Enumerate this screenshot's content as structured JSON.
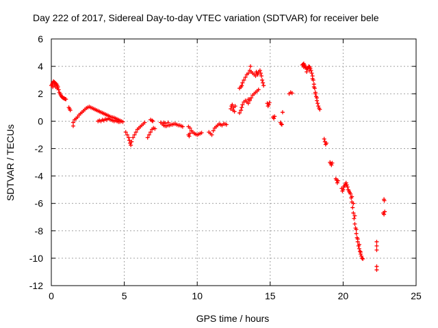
{
  "chart_data": {
    "type": "scatter",
    "title": "Day 222 of 2017, Sidereal Day-to-day VTEC variation (SDTVAR) for receiver bele",
    "xlabel": "GPS time / hours",
    "ylabel": "SDTVAR / TECUs",
    "xlim": [
      0,
      25
    ],
    "ylim": [
      -12,
      6
    ],
    "xticks": [
      0,
      5,
      10,
      15,
      20,
      25
    ],
    "yticks": [
      -12,
      -10,
      -8,
      -6,
      -4,
      -2,
      0,
      2,
      4,
      6
    ],
    "xtick_labels": [
      "0",
      "5",
      "10",
      "15",
      "20",
      "25"
    ],
    "ytick_labels": [
      "-12",
      "-10",
      "-8",
      "-6",
      "-4",
      "-2",
      "0",
      "2",
      "4",
      "6"
    ],
    "grid": true,
    "marker": "+",
    "color": "#ff0000",
    "series": [
      {
        "name": "SDTVAR",
        "points": [
          [
            0.0,
            2.6
          ],
          [
            0.05,
            2.7
          ],
          [
            0.1,
            2.8
          ],
          [
            0.15,
            2.9
          ],
          [
            0.2,
            2.85
          ],
          [
            0.25,
            2.8
          ],
          [
            0.3,
            2.75
          ],
          [
            0.35,
            2.7
          ],
          [
            0.4,
            2.6
          ],
          [
            0.45,
            2.5
          ],
          [
            0.5,
            2.3
          ],
          [
            0.55,
            2.1
          ],
          [
            0.6,
            2.0
          ],
          [
            0.65,
            1.9
          ],
          [
            0.7,
            1.8
          ],
          [
            0.75,
            1.75
          ],
          [
            0.8,
            1.7
          ],
          [
            0.85,
            1.68
          ],
          [
            0.9,
            1.65
          ],
          [
            0.95,
            1.62
          ],
          [
            1.0,
            1.6
          ],
          [
            0.1,
            2.5
          ],
          [
            0.2,
            2.6
          ],
          [
            0.3,
            2.5
          ],
          [
            0.4,
            2.4
          ],
          [
            1.2,
            1.0
          ],
          [
            1.25,
            0.9
          ],
          [
            1.3,
            0.8
          ],
          [
            1.5,
            -0.1
          ],
          [
            1.5,
            -0.35
          ],
          [
            1.6,
            0.1
          ],
          [
            1.7,
            0.2
          ],
          [
            1.8,
            0.3
          ],
          [
            1.9,
            0.45
          ],
          [
            2.0,
            0.55
          ],
          [
            2.1,
            0.65
          ],
          [
            2.2,
            0.75
          ],
          [
            2.3,
            0.85
          ],
          [
            2.4,
            0.95
          ],
          [
            2.5,
            1.0
          ],
          [
            2.6,
            1.05
          ],
          [
            2.7,
            1.0
          ],
          [
            2.8,
            0.95
          ],
          [
            2.9,
            0.9
          ],
          [
            3.0,
            0.85
          ],
          [
            3.1,
            0.8
          ],
          [
            3.2,
            0.75
          ],
          [
            3.3,
            0.7
          ],
          [
            3.4,
            0.65
          ],
          [
            3.5,
            0.6
          ],
          [
            3.6,
            0.55
          ],
          [
            3.7,
            0.5
          ],
          [
            3.8,
            0.45
          ],
          [
            3.9,
            0.4
          ],
          [
            4.0,
            0.35
          ],
          [
            4.1,
            0.3
          ],
          [
            4.2,
            0.28
          ],
          [
            4.3,
            0.25
          ],
          [
            4.4,
            0.2
          ],
          [
            4.5,
            0.15
          ],
          [
            4.6,
            0.1
          ],
          [
            4.7,
            0.05
          ],
          [
            4.8,
            0.0
          ],
          [
            4.9,
            -0.05
          ],
          [
            3.2,
            0.0
          ],
          [
            3.3,
            0.05
          ],
          [
            3.4,
            0.0
          ],
          [
            3.5,
            0.1
          ],
          [
            3.6,
            0.05
          ],
          [
            3.7,
            0.15
          ],
          [
            3.8,
            0.1
          ],
          [
            3.9,
            0.2
          ],
          [
            4.0,
            0.15
          ],
          [
            4.1,
            0.1
          ],
          [
            4.2,
            0.05
          ],
          [
            4.3,
            0.0
          ],
          [
            4.4,
            0.05
          ],
          [
            4.5,
            0.0
          ],
          [
            4.6,
            -0.05
          ],
          [
            4.7,
            -0.05
          ],
          [
            5.1,
            -0.8
          ],
          [
            5.2,
            -1.0
          ],
          [
            5.3,
            -1.2
          ],
          [
            5.35,
            -1.4
          ],
          [
            5.4,
            -1.6
          ],
          [
            5.45,
            -1.75
          ],
          [
            5.5,
            -1.5
          ],
          [
            5.6,
            -1.2
          ],
          [
            5.7,
            -1.0
          ],
          [
            5.8,
            -0.8
          ],
          [
            5.9,
            -0.6
          ],
          [
            6.0,
            -0.5
          ],
          [
            6.1,
            -0.4
          ],
          [
            6.2,
            -0.3
          ],
          [
            6.3,
            -0.2
          ],
          [
            6.4,
            -0.1
          ],
          [
            6.6,
            -1.2
          ],
          [
            6.7,
            -1.0
          ],
          [
            6.8,
            -0.8
          ],
          [
            6.9,
            -0.6
          ],
          [
            7.0,
            -0.5
          ],
          [
            7.1,
            -0.55
          ],
          [
            6.8,
            0.1
          ],
          [
            6.9,
            0.05
          ],
          [
            6.95,
            0.0
          ],
          [
            7.5,
            -0.1
          ],
          [
            7.6,
            -0.2
          ],
          [
            7.7,
            -0.3
          ],
          [
            7.8,
            -0.35
          ],
          [
            7.9,
            -0.35
          ],
          [
            8.0,
            -0.3
          ],
          [
            8.1,
            -0.3
          ],
          [
            8.2,
            -0.25
          ],
          [
            8.3,
            -0.25
          ],
          [
            8.4,
            -0.2
          ],
          [
            8.5,
            -0.2
          ],
          [
            8.6,
            -0.25
          ],
          [
            8.7,
            -0.3
          ],
          [
            8.8,
            -0.3
          ],
          [
            8.9,
            -0.35
          ],
          [
            9.0,
            -0.4
          ],
          [
            7.7,
            -0.1
          ],
          [
            7.8,
            -0.15
          ],
          [
            8.0,
            -0.1
          ],
          [
            9.4,
            -0.4
          ],
          [
            9.5,
            -0.5
          ],
          [
            9.6,
            -0.7
          ],
          [
            9.7,
            -0.8
          ],
          [
            9.8,
            -0.9
          ],
          [
            9.9,
            -0.95
          ],
          [
            10.0,
            -1.0
          ],
          [
            10.1,
            -0.95
          ],
          [
            10.2,
            -0.9
          ],
          [
            10.3,
            -0.85
          ],
          [
            9.4,
            -1.0
          ],
          [
            9.45,
            -1.1
          ],
          [
            9.5,
            -0.9
          ],
          [
            10.8,
            -0.8
          ],
          [
            10.9,
            -0.9
          ],
          [
            11.0,
            -1.0
          ],
          [
            11.1,
            -0.7
          ],
          [
            11.2,
            -0.5
          ],
          [
            11.3,
            -0.4
          ],
          [
            11.4,
            -0.3
          ],
          [
            11.5,
            -0.2
          ],
          [
            11.6,
            -0.25
          ],
          [
            11.7,
            -0.3
          ],
          [
            11.8,
            -0.2
          ],
          [
            11.9,
            -0.2
          ],
          [
            12.0,
            -0.25
          ],
          [
            12.3,
            0.9
          ],
          [
            12.35,
            1.1
          ],
          [
            12.4,
            1.2
          ],
          [
            12.45,
            0.8
          ],
          [
            12.5,
            1.0
          ],
          [
            12.55,
            0.7
          ],
          [
            12.6,
            1.1
          ],
          [
            12.9,
            2.4
          ],
          [
            13.0,
            2.5
          ],
          [
            13.05,
            2.6
          ],
          [
            13.1,
            2.8
          ],
          [
            13.2,
            3.0
          ],
          [
            13.3,
            3.2
          ],
          [
            13.4,
            3.4
          ],
          [
            13.5,
            3.5
          ],
          [
            13.6,
            3.7
          ],
          [
            13.65,
            4.0
          ],
          [
            13.7,
            3.6
          ],
          [
            13.8,
            3.5
          ],
          [
            13.9,
            3.4
          ],
          [
            14.0,
            3.3
          ],
          [
            14.05,
            3.6
          ],
          [
            14.1,
            3.5
          ],
          [
            14.15,
            3.4
          ],
          [
            14.2,
            3.6
          ],
          [
            14.3,
            3.7
          ],
          [
            14.35,
            3.5
          ],
          [
            14.4,
            3.3
          ],
          [
            14.45,
            3.0
          ],
          [
            14.5,
            2.8
          ],
          [
            14.55,
            2.6
          ],
          [
            12.9,
            0.6
          ],
          [
            13.0,
            0.8
          ],
          [
            13.05,
            1.0
          ],
          [
            13.1,
            1.2
          ],
          [
            13.2,
            1.4
          ],
          [
            13.3,
            1.5
          ],
          [
            13.4,
            1.4
          ],
          [
            13.5,
            1.3
          ],
          [
            13.6,
            1.5
          ],
          [
            13.7,
            1.7
          ],
          [
            13.8,
            1.9
          ],
          [
            13.9,
            2.0
          ],
          [
            14.0,
            2.1
          ],
          [
            14.1,
            2.2
          ],
          [
            14.2,
            2.3
          ],
          [
            13.5,
            1.6
          ],
          [
            13.6,
            1.6
          ],
          [
            14.8,
            1.3
          ],
          [
            14.85,
            1.1
          ],
          [
            14.9,
            1.2
          ],
          [
            14.95,
            1.35
          ],
          [
            15.2,
            0.3
          ],
          [
            15.25,
            0.2
          ],
          [
            15.3,
            0.35
          ],
          [
            15.7,
            -0.1
          ],
          [
            15.75,
            -0.2
          ],
          [
            15.8,
            -0.25
          ],
          [
            15.85,
            0.65
          ],
          [
            16.3,
            2.0
          ],
          [
            16.4,
            2.1
          ],
          [
            16.5,
            2.05
          ],
          [
            17.2,
            4.1
          ],
          [
            17.25,
            4.15
          ],
          [
            17.3,
            4.2
          ],
          [
            17.35,
            4.1
          ],
          [
            17.4,
            4.0
          ],
          [
            17.45,
            3.9
          ],
          [
            17.5,
            3.8
          ],
          [
            17.55,
            3.85
          ],
          [
            17.6,
            3.9
          ],
          [
            17.65,
            4.0
          ],
          [
            17.7,
            3.95
          ],
          [
            17.75,
            3.85
          ],
          [
            17.8,
            3.7
          ],
          [
            17.85,
            3.5
          ],
          [
            17.9,
            3.3
          ],
          [
            17.95,
            3.0
          ],
          [
            18.0,
            2.7
          ],
          [
            18.05,
            2.4
          ],
          [
            18.1,
            2.1
          ],
          [
            18.15,
            1.8
          ],
          [
            18.2,
            1.5
          ],
          [
            18.25,
            1.3
          ],
          [
            18.3,
            1.1
          ],
          [
            18.35,
            0.95
          ],
          [
            18.4,
            0.85
          ],
          [
            17.3,
            3.95
          ],
          [
            17.5,
            3.6
          ],
          [
            17.7,
            3.7
          ],
          [
            17.9,
            3.1
          ],
          [
            18.0,
            2.5
          ],
          [
            18.1,
            2.0
          ],
          [
            18.2,
            1.7
          ],
          [
            18.7,
            -1.3
          ],
          [
            18.75,
            -1.5
          ],
          [
            18.8,
            -1.7
          ],
          [
            18.85,
            -1.6
          ],
          [
            19.1,
            -3.0
          ],
          [
            19.15,
            -3.1
          ],
          [
            19.2,
            -3.2
          ],
          [
            19.25,
            -3.05
          ],
          [
            19.5,
            -4.2
          ],
          [
            19.55,
            -4.3
          ],
          [
            19.6,
            -4.5
          ],
          [
            19.65,
            -4.35
          ],
          [
            19.9,
            -4.9
          ],
          [
            19.95,
            -5.1
          ],
          [
            20.0,
            -5.0
          ],
          [
            20.05,
            -4.8
          ],
          [
            20.1,
            -4.7
          ],
          [
            20.15,
            -4.6
          ],
          [
            20.2,
            -4.5
          ],
          [
            20.25,
            -4.65
          ],
          [
            20.3,
            -4.8
          ],
          [
            20.35,
            -5.0
          ],
          [
            20.4,
            -5.1
          ],
          [
            20.45,
            -5.2
          ],
          [
            20.5,
            -5.3
          ],
          [
            20.55,
            -5.6
          ],
          [
            20.6,
            -5.9
          ],
          [
            20.65,
            -6.3
          ],
          [
            20.7,
            -6.7
          ],
          [
            20.75,
            -7.1
          ],
          [
            20.8,
            -7.5
          ],
          [
            20.85,
            -7.8
          ],
          [
            20.9,
            -8.2
          ],
          [
            20.95,
            -8.5
          ],
          [
            21.0,
            -8.8
          ],
          [
            21.05,
            -9.1
          ],
          [
            21.1,
            -9.3
          ],
          [
            21.15,
            -9.5
          ],
          [
            21.2,
            -9.7
          ],
          [
            21.25,
            -9.85
          ],
          [
            21.3,
            -10.0
          ],
          [
            21.35,
            -10.05
          ],
          [
            20.6,
            -5.5
          ],
          [
            20.7,
            -6.0
          ],
          [
            20.8,
            -6.9
          ],
          [
            20.9,
            -7.9
          ],
          [
            21.0,
            -8.6
          ],
          [
            21.1,
            -9.0
          ],
          [
            21.2,
            -9.55
          ],
          [
            22.3,
            -8.8
          ],
          [
            22.3,
            -9.1
          ],
          [
            22.3,
            -9.4
          ],
          [
            22.3,
            -10.6
          ],
          [
            22.3,
            -10.85
          ],
          [
            22.8,
            -5.7
          ],
          [
            22.82,
            -5.8
          ],
          [
            22.85,
            -6.6
          ],
          [
            22.8,
            -6.8
          ],
          [
            22.75,
            -6.7
          ]
        ]
      }
    ]
  }
}
